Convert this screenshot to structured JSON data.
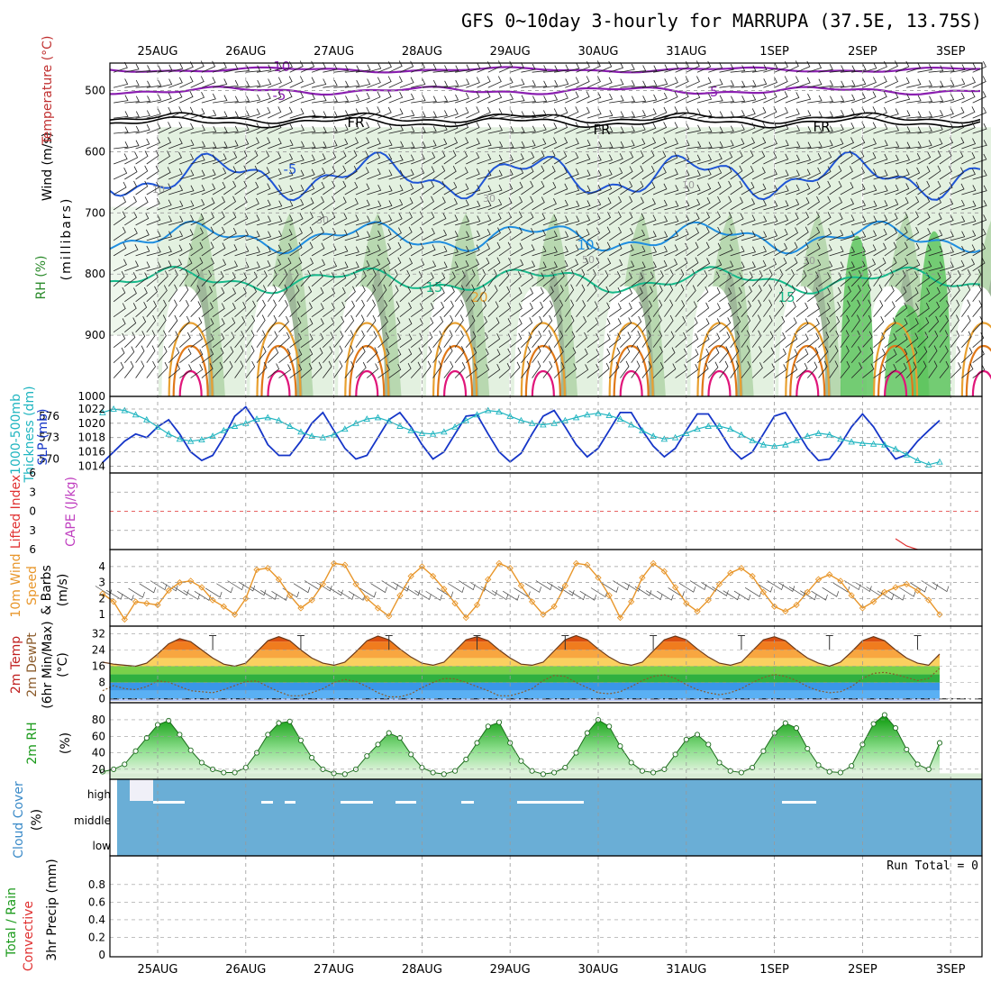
{
  "title": "GFS 0~10day 3-hourly for MARRUPA (37.5E, 13.75S)",
  "dates": [
    "25AUG",
    "26AUG",
    "27AUG",
    "28AUG",
    "29AUG",
    "30AUG",
    "31AUG",
    "1SEP",
    "2SEP",
    "3SEP"
  ],
  "colors": {
    "rh_light": "#e3f1e0",
    "rh_mid": "#b8d8b0",
    "rh_dark": "#9fb89a",
    "rh_green": "#5fc55f",
    "temp_purple": "#8a1fb0",
    "temp_black": "#000000",
    "temp_blue": "#1f55d6",
    "temp_lightblue": "#1f8ee0",
    "temp_teal": "#16b98a",
    "temp_orange_light": "#e8a030",
    "temp_orange": "#e07818",
    "temp_magenta": "#e0157a",
    "slp": "#1535c8",
    "thickness": "#20b5c0",
    "zero_line": "#e03030",
    "cape": "#c040c0",
    "wind10": "#e8962a",
    "cloud": "#6aaed6",
    "grid": "#999999"
  },
  "panels": {
    "upper": {
      "ylabels": [
        "Wind (m/s)",
        "Temperature (°C)",
        "RH (%)",
        "(millibars)"
      ],
      "yticks": [
        "500",
        "600",
        "700",
        "800",
        "900",
        "1000"
      ],
      "contour_labels": [
        "-10",
        "-5",
        "-5",
        "FR",
        "FR",
        "FR",
        "-5",
        "10",
        "10",
        "30",
        "30",
        "50",
        "30",
        "15",
        "15",
        "20",
        "10"
      ]
    },
    "slp": {
      "ylabels": [
        "1000-500mb",
        "Thickness (dm)",
        "SLP (mb)"
      ],
      "yticks_left": [
        "576",
        "573",
        "570"
      ],
      "yticks_right": [
        "1022",
        "1020",
        "1018",
        "1016",
        "1014"
      ]
    },
    "li": {
      "ylabels": [
        "Lifted Index",
        "CAPE (J/kg)"
      ],
      "yticks": [
        "6",
        "3",
        "0",
        "3",
        "6"
      ]
    },
    "wind10": {
      "ylabels": [
        "10m Wind",
        "Speed",
        "& Barbs",
        "(m/s)"
      ],
      "yticks": [
        "4",
        "3",
        "2",
        "1"
      ]
    },
    "temp2m": {
      "ylabels": [
        "2m Temp",
        "2m DewPt",
        "(6hr Min/Max)",
        "(°C)"
      ],
      "yticks": [
        "32",
        "24",
        "16",
        "8",
        "0"
      ]
    },
    "rh2m": {
      "ylabels": [
        "2m RH",
        "(%)"
      ],
      "yticks": [
        "80",
        "60",
        "40",
        "20"
      ]
    },
    "cloud": {
      "ylabels": [
        "Cloud Cover",
        "(%)"
      ],
      "levels": [
        "high",
        "middle",
        "low"
      ]
    },
    "precip": {
      "ylabels": [
        "Total / Rain",
        "Convective",
        "3hr Precip (mm)"
      ],
      "yticks": [
        "0.8",
        "0.6",
        "0.4",
        "0.2",
        "0"
      ],
      "run_total": "Run Total = 0"
    }
  },
  "chart_data": {
    "type": "line",
    "x": "3-hourly steps from 25AUG 00Z to 3SEP 06Z",
    "slp_mb": [
      1014.5,
      1016,
      1017.5,
      1018.5,
      1018,
      1019.5,
      1020.5,
      1018.5,
      1016,
      1014.8,
      1015.5,
      1018,
      1021,
      1022.3,
      1020,
      1017,
      1015.5,
      1015.5,
      1017.5,
      1020,
      1021.5,
      1019,
      1016.5,
      1015,
      1015.5,
      1018,
      1020.5,
      1021.5,
      1019.5,
      1017,
      1015,
      1016,
      1018.5,
      1021,
      1021.2,
      1018.5,
      1016,
      1014.6,
      1015.8,
      1018.5,
      1021,
      1021.8,
      1019.5,
      1017,
      1015.3,
      1016.5,
      1019,
      1021.5,
      1021.5,
      1019,
      1016.8,
      1015.3,
      1016.5,
      1019,
      1021.3,
      1021.3,
      1019,
      1016.5,
      1015,
      1016,
      1018.5,
      1021,
      1021.5,
      1019,
      1016.5,
      1014.8,
      1015,
      1017,
      1019.5,
      1021.3,
      1019.5,
      1017,
      1015,
      1015.6,
      1017.5,
      1019,
      1020.4
    ],
    "thickness_dm": [
      576.5,
      577,
      576.8,
      576.2,
      575.5,
      574.5,
      573.5,
      572.8,
      572.5,
      572.7,
      573.2,
      574,
      574.6,
      575,
      575.6,
      575.8,
      575.4,
      574.6,
      573.8,
      573.2,
      573,
      573.4,
      574.2,
      575,
      575.6,
      575.8,
      575.3,
      574.6,
      574,
      573.6,
      573.5,
      573.8,
      574.5,
      575.4,
      576.2,
      576.8,
      576.6,
      576,
      575.4,
      575,
      574.8,
      575,
      575.4,
      575.8,
      576.2,
      576.4,
      576.1,
      575.6,
      574.8,
      574,
      573.2,
      572.8,
      573,
      573.6,
      574.2,
      574.6,
      574.6,
      574.2,
      573.4,
      572.6,
      572,
      571.8,
      572,
      572.6,
      573.2,
      573.6,
      573.4,
      572.8,
      572.4,
      572.2,
      572.1,
      572,
      571.4,
      570.6,
      569.8,
      569.2,
      569.6
    ],
    "wind10_ms": [
      2.3,
      1.8,
      0.7,
      1.8,
      1.7,
      1.6,
      2.5,
      3,
      3.1,
      2.7,
      1.9,
      1.5,
      1,
      2,
      3.8,
      3.9,
      3.2,
      2.2,
      1.4,
      1.9,
      2.9,
      4.2,
      4.1,
      2.9,
      2,
      1.4,
      0.9,
      2.2,
      3.4,
      4,
      3.4,
      2.6,
      1.7,
      0.8,
      1.6,
      3.2,
      4.2,
      3.9,
      2.8,
      1.8,
      1,
      1.5,
      2.8,
      4.2,
      4.1,
      3.3,
      2.2,
      0.8,
      1.8,
      3.3,
      4.2,
      3.7,
      2.7,
      1.7,
      1.2,
      1.9,
      2.9,
      3.6,
      3.9,
      3.4,
      2.4,
      1.5,
      1.2,
      1.6,
      2.4,
      3.2,
      3.5,
      3.1,
      2.2,
      1.4,
      1.8,
      2.4,
      2.7,
      2.9,
      2.5,
      1.9,
      1
    ],
    "temp2m_c": [
      18,
      17,
      16.5,
      16,
      17.5,
      22,
      27,
      29.5,
      28,
      24,
      20,
      17,
      16,
      17.5,
      23,
      28.5,
      30.5,
      28.5,
      24,
      20,
      17.5,
      16.5,
      18,
      23,
      28.5,
      30.8,
      29,
      24.5,
      20.5,
      17.5,
      16.5,
      18,
      23.5,
      29,
      30.5,
      28.5,
      24,
      20,
      17,
      16.5,
      18,
      23.5,
      29,
      31,
      29,
      24.5,
      20.5,
      17.5,
      16.5,
      18,
      23.5,
      29,
      30.8,
      29,
      24.5,
      20.5,
      17.5,
      16.5,
      18,
      23.5,
      29,
      30.5,
      28.5,
      24,
      20,
      17.5,
      16,
      18,
      23,
      28.5,
      30.5,
      28.5,
      24,
      20,
      17.5,
      16.5,
      22
    ],
    "dewpt2m_c": [
      4,
      6.5,
      5,
      4.5,
      6,
      8.8,
      8.2,
      6,
      4,
      3.5,
      3,
      4.5,
      6.5,
      8.5,
      8.8,
      6,
      3.5,
      1.5,
      1.5,
      3,
      5,
      8,
      9.5,
      8.5,
      6,
      3,
      1,
      1,
      2.5,
      5.5,
      8,
      10,
      9.8,
      8,
      6,
      4,
      1.5,
      1.5,
      3,
      5,
      9,
      11.5,
      11,
      8,
      5.5,
      3,
      2.5,
      3.5,
      6,
      9,
      11,
      11.8,
      10,
      7,
      4.5,
      3,
      2,
      3,
      5,
      8,
      10.5,
      12,
      11,
      9,
      6,
      4,
      3,
      3.5,
      6,
      10,
      12.5,
      13,
      12,
      10.5,
      9,
      10,
      15
    ],
    "rh2m_pct": [
      17,
      20,
      26,
      42,
      58,
      74,
      79,
      62,
      43,
      28,
      20,
      16,
      16,
      22,
      40,
      62,
      76,
      78,
      55,
      34,
      20,
      15,
      14,
      20,
      36,
      50,
      64,
      58,
      38,
      22,
      16,
      14,
      18,
      32,
      52,
      72,
      77,
      52,
      30,
      18,
      14,
      16,
      22,
      40,
      64,
      80,
      72,
      48,
      28,
      18,
      16,
      20,
      38,
      56,
      62,
      50,
      28,
      18,
      16,
      22,
      42,
      64,
      76,
      70,
      45,
      25,
      17,
      16,
      24,
      50,
      75,
      86,
      70,
      44,
      26,
      20,
      52
    ],
    "cloud_high_pct": "near 100 most of period",
    "precip_mm": []
  }
}
